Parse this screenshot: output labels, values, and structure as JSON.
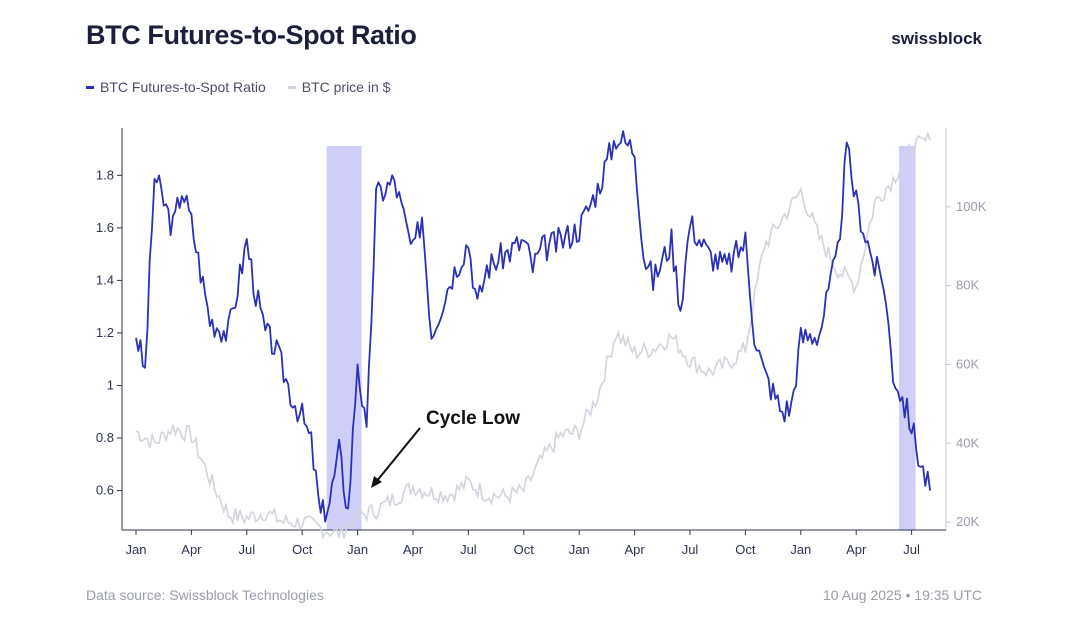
{
  "header": {
    "title": "BTC Futures-to-Spot Ratio",
    "brand": "swissblock"
  },
  "footer": {
    "source": "Data source: Swissblock Technologies",
    "timestamp": "10 Aug 2025 • 19:35 UTC"
  },
  "colors": {
    "ratio": "#2a30b8",
    "price": "#d2d4de",
    "highlight": "#c9c9f7"
  },
  "chart_data": {
    "type": "line",
    "legend_position": "top-left",
    "grid": false,
    "x_start": "2022-01",
    "x_end": "2025-08",
    "x_tick_labels": [
      "Jan",
      "Apr",
      "Jul",
      "Oct",
      "Jan",
      "Apr",
      "Jul",
      "Oct",
      "Jan",
      "Apr",
      "Jul",
      "Oct",
      "Jan",
      "Apr",
      "Jul"
    ],
    "y_left": {
      "range": [
        0.45,
        1.98
      ],
      "ticks": [
        0.6,
        0.8,
        1.0,
        1.2,
        1.4,
        1.6,
        1.8
      ],
      "tick_labels": [
        "0.6",
        "0.8",
        "1",
        "1.2",
        "1.4",
        "1.6",
        "1.8"
      ]
    },
    "y_right": {
      "range": [
        18000,
        120000
      ],
      "ticks": [
        20000,
        40000,
        60000,
        80000,
        100000
      ],
      "tick_labels": [
        "20K",
        "40K",
        "60K",
        "80K",
        "100K"
      ]
    },
    "highlight_ranges": [
      [
        "2022-11",
        "2023-01"
      ],
      [
        "2025-06",
        "2025-07"
      ]
    ],
    "annotation": {
      "text": "Cycle Low",
      "points_to": "2023-01"
    },
    "series": [
      {
        "name": "BTC Futures-to-Spot Ratio",
        "axis": "left",
        "x": [
          "2022-01",
          "2022-01",
          "2022-02",
          "2022-03",
          "2022-03",
          "2022-04",
          "2022-05",
          "2022-06",
          "2022-07",
          "2022-07",
          "2022-08",
          "2022-08",
          "2022-09",
          "2022-09",
          "2022-10",
          "2022-10",
          "2022-11",
          "2022-11",
          "2022-12",
          "2022-12",
          "2023-01",
          "2023-01",
          "2023-02",
          "2023-03",
          "2023-04",
          "2023-04",
          "2023-05",
          "2023-06",
          "2023-07",
          "2023-07",
          "2023-08",
          "2023-09",
          "2023-10",
          "2023-10",
          "2023-11",
          "2023-12",
          "2024-01",
          "2024-02",
          "2024-03",
          "2024-04",
          "2024-04",
          "2024-05",
          "2024-06",
          "2024-06",
          "2024-07",
          "2024-08",
          "2024-09",
          "2024-10",
          "2024-10",
          "2024-11",
          "2024-12",
          "2024-12",
          "2025-01",
          "2025-02",
          "2025-03",
          "2025-03",
          "2025-04",
          "2025-05",
          "2025-05",
          "2025-06",
          "2025-07",
          "2025-07",
          "2025-08"
        ],
        "y": [
          1.2,
          1.05,
          1.8,
          1.6,
          1.75,
          1.62,
          1.25,
          1.2,
          1.55,
          1.35,
          1.2,
          1.15,
          1.05,
          0.95,
          0.88,
          0.78,
          0.5,
          0.56,
          0.75,
          0.52,
          1.1,
          0.8,
          1.72,
          1.78,
          1.5,
          1.65,
          1.2,
          1.4,
          1.55,
          1.3,
          1.45,
          1.5,
          1.55,
          1.45,
          1.52,
          1.55,
          1.6,
          1.75,
          1.95,
          1.9,
          1.5,
          1.4,
          1.55,
          1.3,
          1.62,
          1.5,
          1.45,
          1.55,
          1.2,
          1.05,
          0.9,
          0.92,
          1.18,
          1.2,
          1.5,
          1.9,
          1.7,
          1.45,
          1.4,
          1.05,
          0.85,
          0.7,
          0.6
        ]
      },
      {
        "name": "BTC price in $",
        "axis": "right",
        "x": [
          "2022-01",
          "2022-02",
          "2022-03",
          "2022-04",
          "2022-05",
          "2022-06",
          "2022-07",
          "2022-08",
          "2022-09",
          "2022-10",
          "2022-11",
          "2022-12",
          "2023-01",
          "2023-02",
          "2023-03",
          "2023-04",
          "2023-05",
          "2023-06",
          "2023-07",
          "2023-08",
          "2023-09",
          "2023-10",
          "2023-11",
          "2023-12",
          "2024-01",
          "2024-02",
          "2024-03",
          "2024-04",
          "2024-05",
          "2024-06",
          "2024-07",
          "2024-08",
          "2024-09",
          "2024-10",
          "2024-11",
          "2024-12",
          "2025-01",
          "2025-02",
          "2025-03",
          "2025-04",
          "2025-05",
          "2025-06",
          "2025-07",
          "2025-08"
        ],
        "y": [
          43000,
          40000,
          44000,
          42000,
          31000,
          22000,
          21000,
          22500,
          20000,
          20000,
          18500,
          17000,
          21500,
          23000,
          26000,
          29000,
          27500,
          27000,
          30000,
          27000,
          26500,
          28000,
          36000,
          42000,
          43000,
          52000,
          68000,
          63000,
          64000,
          67000,
          61000,
          58000,
          60000,
          64000,
          90000,
          97000,
          104000,
          92000,
          84000,
          80000,
          101000,
          107000,
          115000,
          117000
        ]
      }
    ]
  }
}
